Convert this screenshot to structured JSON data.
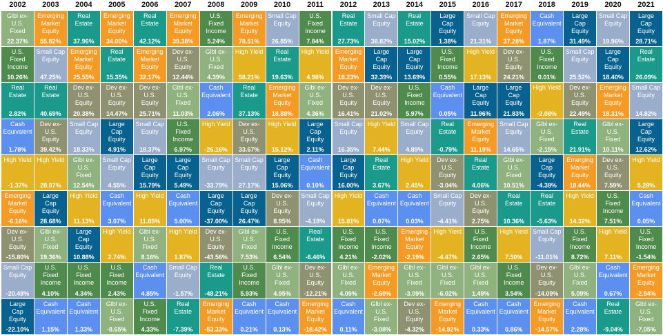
{
  "chart_data": {
    "type": "table",
    "title": "",
    "years": [
      "2002",
      "2003",
      "2004",
      "2005",
      "2006",
      "2007",
      "2008",
      "2009",
      "2010",
      "2011",
      "2012",
      "2013",
      "2014",
      "2015",
      "2016",
      "2017",
      "2018",
      "2019",
      "2020",
      "2021"
    ],
    "asset_classes": {
      "gxusf": {
        "label": "Glbl ex-\nU.S.\nFixed",
        "color": "#8fb27e"
      },
      "emeq": {
        "label": "Emerging\nMarket\nEquity",
        "color": "#f59a23"
      },
      "re": {
        "label": "Real\nEstate",
        "color": "#1a9a8a"
      },
      "scap": {
        "label": "Small Cap\nEquity",
        "color": "#9aaecb"
      },
      "lcap": {
        "label": "Large\nCap\nEquity",
        "color": "#07628f"
      },
      "usfi": {
        "label": "U.S.\nFixed\nIncome",
        "color": "#4f8b4c"
      },
      "hy": {
        "label": "High Yield",
        "color": "#e3b321"
      },
      "cash": {
        "label": "Cash\nEquivalent",
        "color": "#5b8ff0"
      },
      "dev": {
        "label": "Dev ex-\nU.S.\nEquity",
        "color": "#8f9270"
      }
    },
    "ranks": [
      [
        [
          "gxusf",
          "22.37%"
        ],
        [
          "emeq",
          "55.82%"
        ],
        [
          "re",
          "37.96%"
        ],
        [
          "emeq",
          "34.00%"
        ],
        [
          "re",
          "42.12%"
        ],
        [
          "emeq",
          "39.38%"
        ],
        [
          "usfi",
          "5.24%"
        ],
        [
          "emeq",
          "78.51%"
        ],
        [
          "scap",
          "26.85%"
        ],
        [
          "usfi",
          "7.84%"
        ],
        [
          "re",
          "27.73%"
        ],
        [
          "scap",
          "38.82%"
        ],
        [
          "re",
          "15.02%"
        ],
        [
          "lcap",
          "1.38%"
        ],
        [
          "scap",
          "21.31%"
        ],
        [
          "emeq",
          "37.28%"
        ],
        [
          "cash",
          "1.87%"
        ],
        [
          "lcap",
          "31.49%"
        ],
        [
          "scap",
          "19.96%"
        ],
        [
          "lcap",
          "28.71%"
        ]
      ],
      [
        [
          "usfi",
          "10.26%"
        ],
        [
          "scap",
          "47.25%"
        ],
        [
          "emeq",
          "25.55%"
        ],
        [
          "re",
          "15.35%"
        ],
        [
          "emeq",
          "32.17%"
        ],
        [
          "dev",
          "12.44%"
        ],
        [
          "gxusf",
          "4.39%"
        ],
        [
          "hy",
          "58.21%"
        ],
        [
          "re",
          "19.63%"
        ],
        [
          "hy",
          "4.98%"
        ],
        [
          "emeq",
          "18.23%"
        ],
        [
          "lcap",
          "32.39%"
        ],
        [
          "lcap",
          "13.69%"
        ],
        [
          "usfi",
          "0.55%"
        ],
        [
          "hy",
          "17.13%"
        ],
        [
          "dev",
          "24.21%"
        ],
        [
          "usfi",
          "0.01%"
        ],
        [
          "scap",
          "25.52%"
        ],
        [
          "lcap",
          "18.40%"
        ],
        [
          "re",
          "26.09%"
        ]
      ],
      [
        [
          "re",
          "2.82%"
        ],
        [
          "re",
          "40.69%"
        ],
        [
          "dev",
          "20.38%"
        ],
        [
          "dev",
          "14.47%"
        ],
        [
          "dev",
          "25.71%"
        ],
        [
          "gxusf",
          "11.03%"
        ],
        [
          "cash",
          "2.06%"
        ],
        [
          "re",
          "37.13%"
        ],
        [
          "emeq",
          "18.88%"
        ],
        [
          "gxusf",
          "4.36%"
        ],
        [
          "dev",
          "16.41%"
        ],
        [
          "dev",
          "21.02%"
        ],
        [
          "usfi",
          "5.97%"
        ],
        [
          "cash",
          "0.05%"
        ],
        [
          "lcap",
          "11.96%"
        ],
        [
          "lcap",
          "21.83%"
        ],
        [
          "hy",
          "-2.08%"
        ],
        [
          "dev",
          "22.49%"
        ],
        [
          "emeq",
          "18.31%"
        ],
        [
          "scap",
          "14.82%"
        ]
      ],
      [
        [
          "cash",
          "1.78%"
        ],
        [
          "dev",
          "39.42%"
        ],
        [
          "scap",
          "18.33%"
        ],
        [
          "lcap",
          "4.91%"
        ],
        [
          "scap",
          "18.37%"
        ],
        [
          "usfi",
          "6.97%"
        ],
        [
          "hy",
          "-26.16%"
        ],
        [
          "dev",
          "33.67%"
        ],
        [
          "hy",
          "15.12%"
        ],
        [
          "lcap",
          "2.11%"
        ],
        [
          "scap",
          "16.35%"
        ],
        [
          "hy",
          "7.44%"
        ],
        [
          "scap",
          "4.89%"
        ],
        [
          "re",
          "-0.79%"
        ],
        [
          "emeq",
          "11.19%"
        ],
        [
          "scap",
          "14.65%"
        ],
        [
          "gxusf",
          "-2.15%"
        ],
        [
          "re",
          "21.91%"
        ],
        [
          "gxusf",
          "10.11%"
        ],
        [
          "lcap",
          "12.62%"
        ]
      ],
      [
        [
          "hy",
          "-1.37%"
        ],
        [
          "hy",
          "28.97%"
        ],
        [
          "gxusf",
          "12.54%"
        ],
        [
          "scap",
          "4.55%"
        ],
        [
          "lcap",
          "15.79%"
        ],
        [
          "lcap",
          "5.49%"
        ],
        [
          "scap",
          "-33.79%"
        ],
        [
          "scap",
          "27.17%"
        ],
        [
          "lcap",
          "15.06%"
        ],
        [
          "cash",
          "0.10%"
        ],
        [
          "lcap",
          "16.00%"
        ],
        [
          "re",
          "3.67%"
        ],
        [
          "hy",
          "2.45%"
        ],
        [
          "dev",
          "-3.04%"
        ],
        [
          "re",
          "4.06%"
        ],
        [
          "gxusf",
          "10.51%"
        ],
        [
          "lcap",
          "-4.38%"
        ],
        [
          "emeq",
          "18.44%"
        ],
        [
          "dev",
          "7.59%"
        ],
        [
          "hy",
          "5.28%"
        ]
      ],
      [
        [
          "emeq",
          "-6.16%"
        ],
        [
          "lcap",
          "28.68%"
        ],
        [
          "hy",
          "11.13%"
        ],
        [
          "cash",
          "3.07%"
        ],
        [
          "hy",
          "11.85%"
        ],
        [
          "cash",
          "5.00%"
        ],
        [
          "lcap",
          "-37.00%"
        ],
        [
          "lcap",
          "26.47%"
        ],
        [
          "dev",
          "8.95%"
        ],
        [
          "scap",
          "-4.18%"
        ],
        [
          "hy",
          "15.81%"
        ],
        [
          "cash",
          "0.07%"
        ],
        [
          "cash",
          "0.03%"
        ],
        [
          "scap",
          "-4.41%"
        ],
        [
          "dev",
          "2.75%"
        ],
        [
          "re",
          "10.36%"
        ],
        [
          "re",
          "-5.63%"
        ],
        [
          "hy",
          "14.32%"
        ],
        [
          "usfi",
          "7.51%"
        ],
        [
          "cash",
          "0.05%"
        ]
      ],
      [
        [
          "dev",
          "-15.80%"
        ],
        [
          "gxusf",
          "19.36%"
        ],
        [
          "lcap",
          "10.88%"
        ],
        [
          "hy",
          "2.74%"
        ],
        [
          "gxusf",
          "8.16%"
        ],
        [
          "hy",
          "1.87%"
        ],
        [
          "dev",
          "-43.56%"
        ],
        [
          "gxusf",
          "7.53%"
        ],
        [
          "usfi",
          "6.54%"
        ],
        [
          "re",
          "-6.46%"
        ],
        [
          "usfi",
          "4.21%"
        ],
        [
          "usfi",
          "-2.02%"
        ],
        [
          "emeq",
          "-2.19%"
        ],
        [
          "hy",
          "-4.47%"
        ],
        [
          "usfi",
          "2.65%"
        ],
        [
          "hy",
          "7.50%"
        ],
        [
          "scap",
          "-11.01%"
        ],
        [
          "usfi",
          "8.72%"
        ],
        [
          "hy",
          "7.11%"
        ],
        [
          "usfi",
          "-1.54%"
        ]
      ],
      [
        [
          "scap",
          "-20.48%"
        ],
        [
          "usfi",
          "4.10%"
        ],
        [
          "usfi",
          "4.34%"
        ],
        [
          "usfi",
          "2.43%"
        ],
        [
          "cash",
          "4.85%"
        ],
        [
          "scap",
          "-1.57%"
        ],
        [
          "re",
          "-48.21%"
        ],
        [
          "usfi",
          "5.93%"
        ],
        [
          "gxusf",
          "4.95%"
        ],
        [
          "dev",
          "-12.21%"
        ],
        [
          "gxusf",
          "4.09%"
        ],
        [
          "emeq",
          "-2.60%"
        ],
        [
          "gxusf",
          "-3.09%"
        ],
        [
          "gxusf",
          "-6.02%"
        ],
        [
          "gxusf",
          "1.49%"
        ],
        [
          "usfi",
          "3.54%"
        ],
        [
          "dev",
          "-14.09%"
        ],
        [
          "gxusf",
          "5.09%"
        ],
        [
          "cash",
          "0.67%"
        ],
        [
          "emeq",
          "-2.54%"
        ]
      ],
      [
        [
          "lcap",
          "-22.10%"
        ],
        [
          "cash",
          "1.15%"
        ],
        [
          "cash",
          "1.33%"
        ],
        [
          "gxusf",
          "-8.65%"
        ],
        [
          "usfi",
          "4.33%"
        ],
        [
          "re",
          "-7.39%"
        ],
        [
          "emeq",
          "-53.33%"
        ],
        [
          "cash",
          "0.21%"
        ],
        [
          "cash",
          "0.13%"
        ],
        [
          "emeq",
          "-18.42%"
        ],
        [
          "cash",
          "0.11%"
        ],
        [
          "gxusf",
          "-3.08%"
        ],
        [
          "dev",
          "-4.32%"
        ],
        [
          "emeq",
          "-14.92%"
        ],
        [
          "cash",
          "0.33%"
        ],
        [
          "cash",
          "0.86%"
        ],
        [
          "emeq",
          "-14.57%"
        ],
        [
          "cash",
          "2.28%"
        ],
        [
          "re",
          "-9.04%"
        ],
        [
          "gxusf",
          "-7.05%"
        ]
      ]
    ]
  }
}
